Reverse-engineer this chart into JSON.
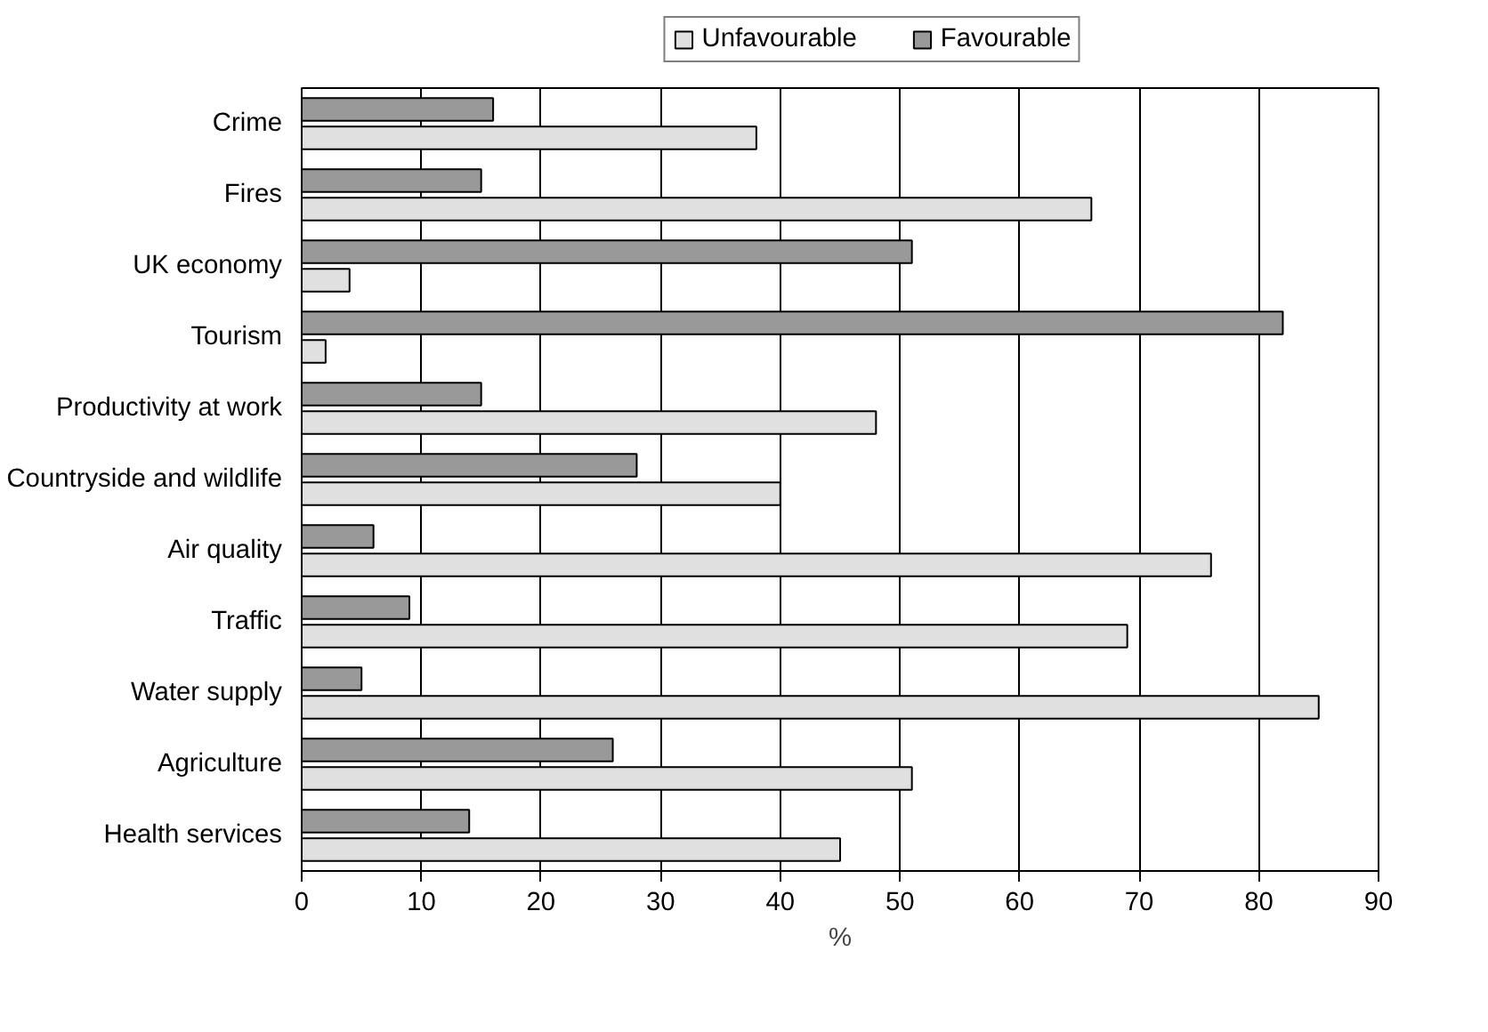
{
  "chart_data": {
    "type": "bar",
    "orientation": "horizontal",
    "xlabel": "%",
    "categories": [
      "Crime",
      "Fires",
      "UK economy",
      "Tourism",
      "Productivity at work",
      "Countryside and wildlife",
      "Air quality",
      "Traffic",
      "Water supply",
      "Agriculture",
      "Health services"
    ],
    "series": [
      {
        "name": "Unfavourable",
        "color": "#e0e0e0",
        "values": [
          38,
          66,
          4,
          2,
          48,
          40,
          76,
          69,
          85,
          51,
          45
        ]
      },
      {
        "name": "Favourable",
        "color": "#999999",
        "values": [
          16,
          15,
          51,
          82,
          15,
          28,
          6,
          9,
          5,
          26,
          14
        ]
      }
    ],
    "xlim": [
      0,
      90
    ],
    "xticks": [
      0,
      10,
      20,
      30,
      40,
      50,
      60,
      70,
      80,
      90
    ],
    "grid": "x",
    "legend": "top"
  }
}
